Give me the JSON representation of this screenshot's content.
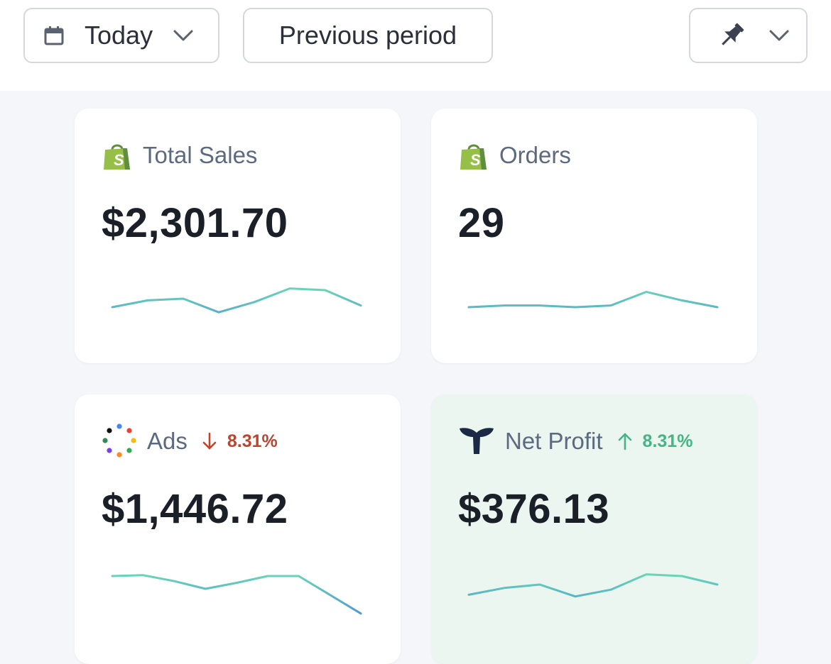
{
  "toolbar": {
    "date_range": {
      "label": "Today",
      "icon": "calendar-icon"
    },
    "compare_label": "Previous period",
    "pin": {
      "icon": "pin-icon"
    }
  },
  "colors": {
    "shopify_green": "#95bf47",
    "triple_whale_navy": "#1b2a44",
    "spark_start": "#4a8fd8",
    "spark_end": "#6fe3b0",
    "delta_down": "#c0442b",
    "delta_up": "#45b585",
    "highlight_bg": "#eaf6ef"
  },
  "cards": [
    {
      "icon": "shopify-bag-icon",
      "title": "Total Sales",
      "value": "$2,301.70",
      "trend": [
        10,
        18,
        20,
        4,
        16,
        32,
        30,
        12
      ]
    },
    {
      "icon": "shopify-bag-icon",
      "title": "Orders",
      "value": "29",
      "trend": [
        10,
        12,
        12,
        10,
        12,
        28,
        18,
        10
      ]
    },
    {
      "icon": "multicolor-dots-icon",
      "title": "Ads",
      "delta": {
        "direction": "down",
        "value": "8.31%"
      },
      "value": "$1,446.72",
      "trend": [
        30,
        31,
        24,
        15,
        22,
        30,
        30,
        8,
        -14
      ]
    },
    {
      "icon": "triple-whale-icon",
      "title": "Net Profit",
      "delta": {
        "direction": "up",
        "value": "8.31%"
      },
      "value": "$376.13",
      "trend": [
        8,
        16,
        20,
        6,
        14,
        32,
        30,
        20
      ]
    }
  ]
}
